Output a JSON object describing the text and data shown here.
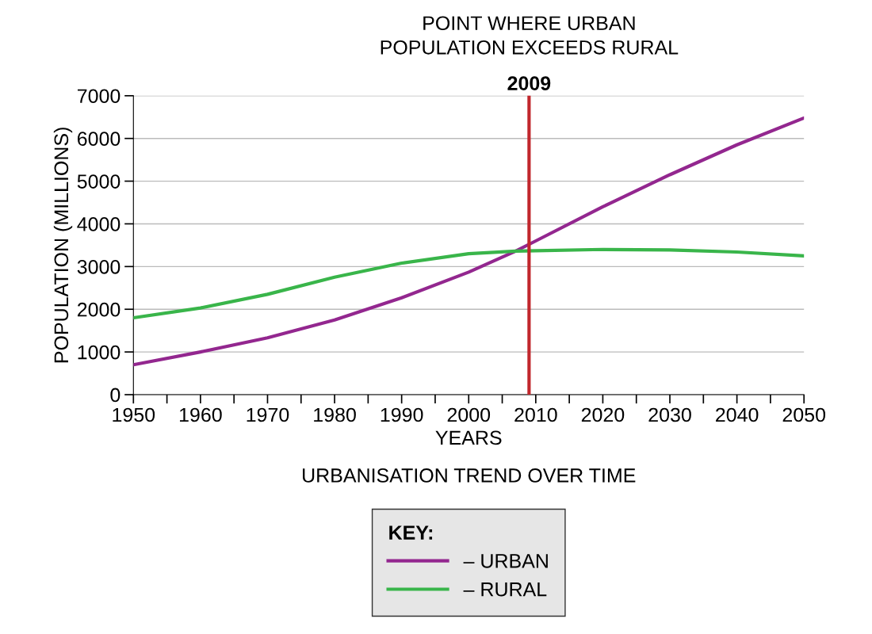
{
  "chart_data": {
    "type": "line",
    "title": "URBANISATION TREND OVER TIME",
    "xlabel": "YEARS",
    "ylabel": "POPULATION (MILLIONS)",
    "legend_title": "KEY:",
    "x": [
      1950,
      1960,
      1970,
      1980,
      1990,
      2000,
      2007,
      2010,
      2020,
      2030,
      2040,
      2050
    ],
    "series": [
      {
        "name": "– URBAN",
        "color": "#93278f",
        "values": [
          700,
          1000,
          1330,
          1750,
          2270,
          2870,
          3360,
          3600,
          4400,
          5150,
          5850,
          6480
        ]
      },
      {
        "name": "– RURAL",
        "color": "#39b54a",
        "values": [
          1800,
          2030,
          2350,
          2750,
          3080,
          3300,
          3360,
          3370,
          3400,
          3390,
          3340,
          3250
        ]
      }
    ],
    "ref_lines": [
      {
        "axis": "x",
        "value": 2009,
        "label": "2009",
        "color": "#c1272d"
      }
    ],
    "annotations": [
      {
        "text": "POINT WHERE URBAN\nPOPULATION EXCEEDS RURAL",
        "x": 2009,
        "y": 7000
      }
    ],
    "xlim": [
      1950,
      2050
    ],
    "ylim": [
      0,
      7000
    ],
    "xticks": [
      1950,
      {
        "value": 1955,
        "label": null
      },
      1960,
      {
        "value": 1965,
        "label": null
      },
      1970,
      {
        "value": 1975,
        "label": null
      },
      1980,
      {
        "value": 1985,
        "label": null
      },
      1990,
      {
        "value": 1995,
        "label": null
      },
      2000,
      {
        "value": 2005,
        "label": null
      },
      2010,
      {
        "value": 2015,
        "label": null
      },
      2020,
      {
        "value": 2025,
        "label": null
      },
      2030,
      {
        "value": 2035,
        "label": null
      },
      2040,
      {
        "value": 2045,
        "label": null
      },
      2050
    ],
    "yticks": [
      0,
      1000,
      2000,
      3000,
      4000,
      5000,
      6000,
      7000
    ],
    "grid": "y",
    "legend": "bottom",
    "marker": "none",
    "line_style": "solid"
  }
}
